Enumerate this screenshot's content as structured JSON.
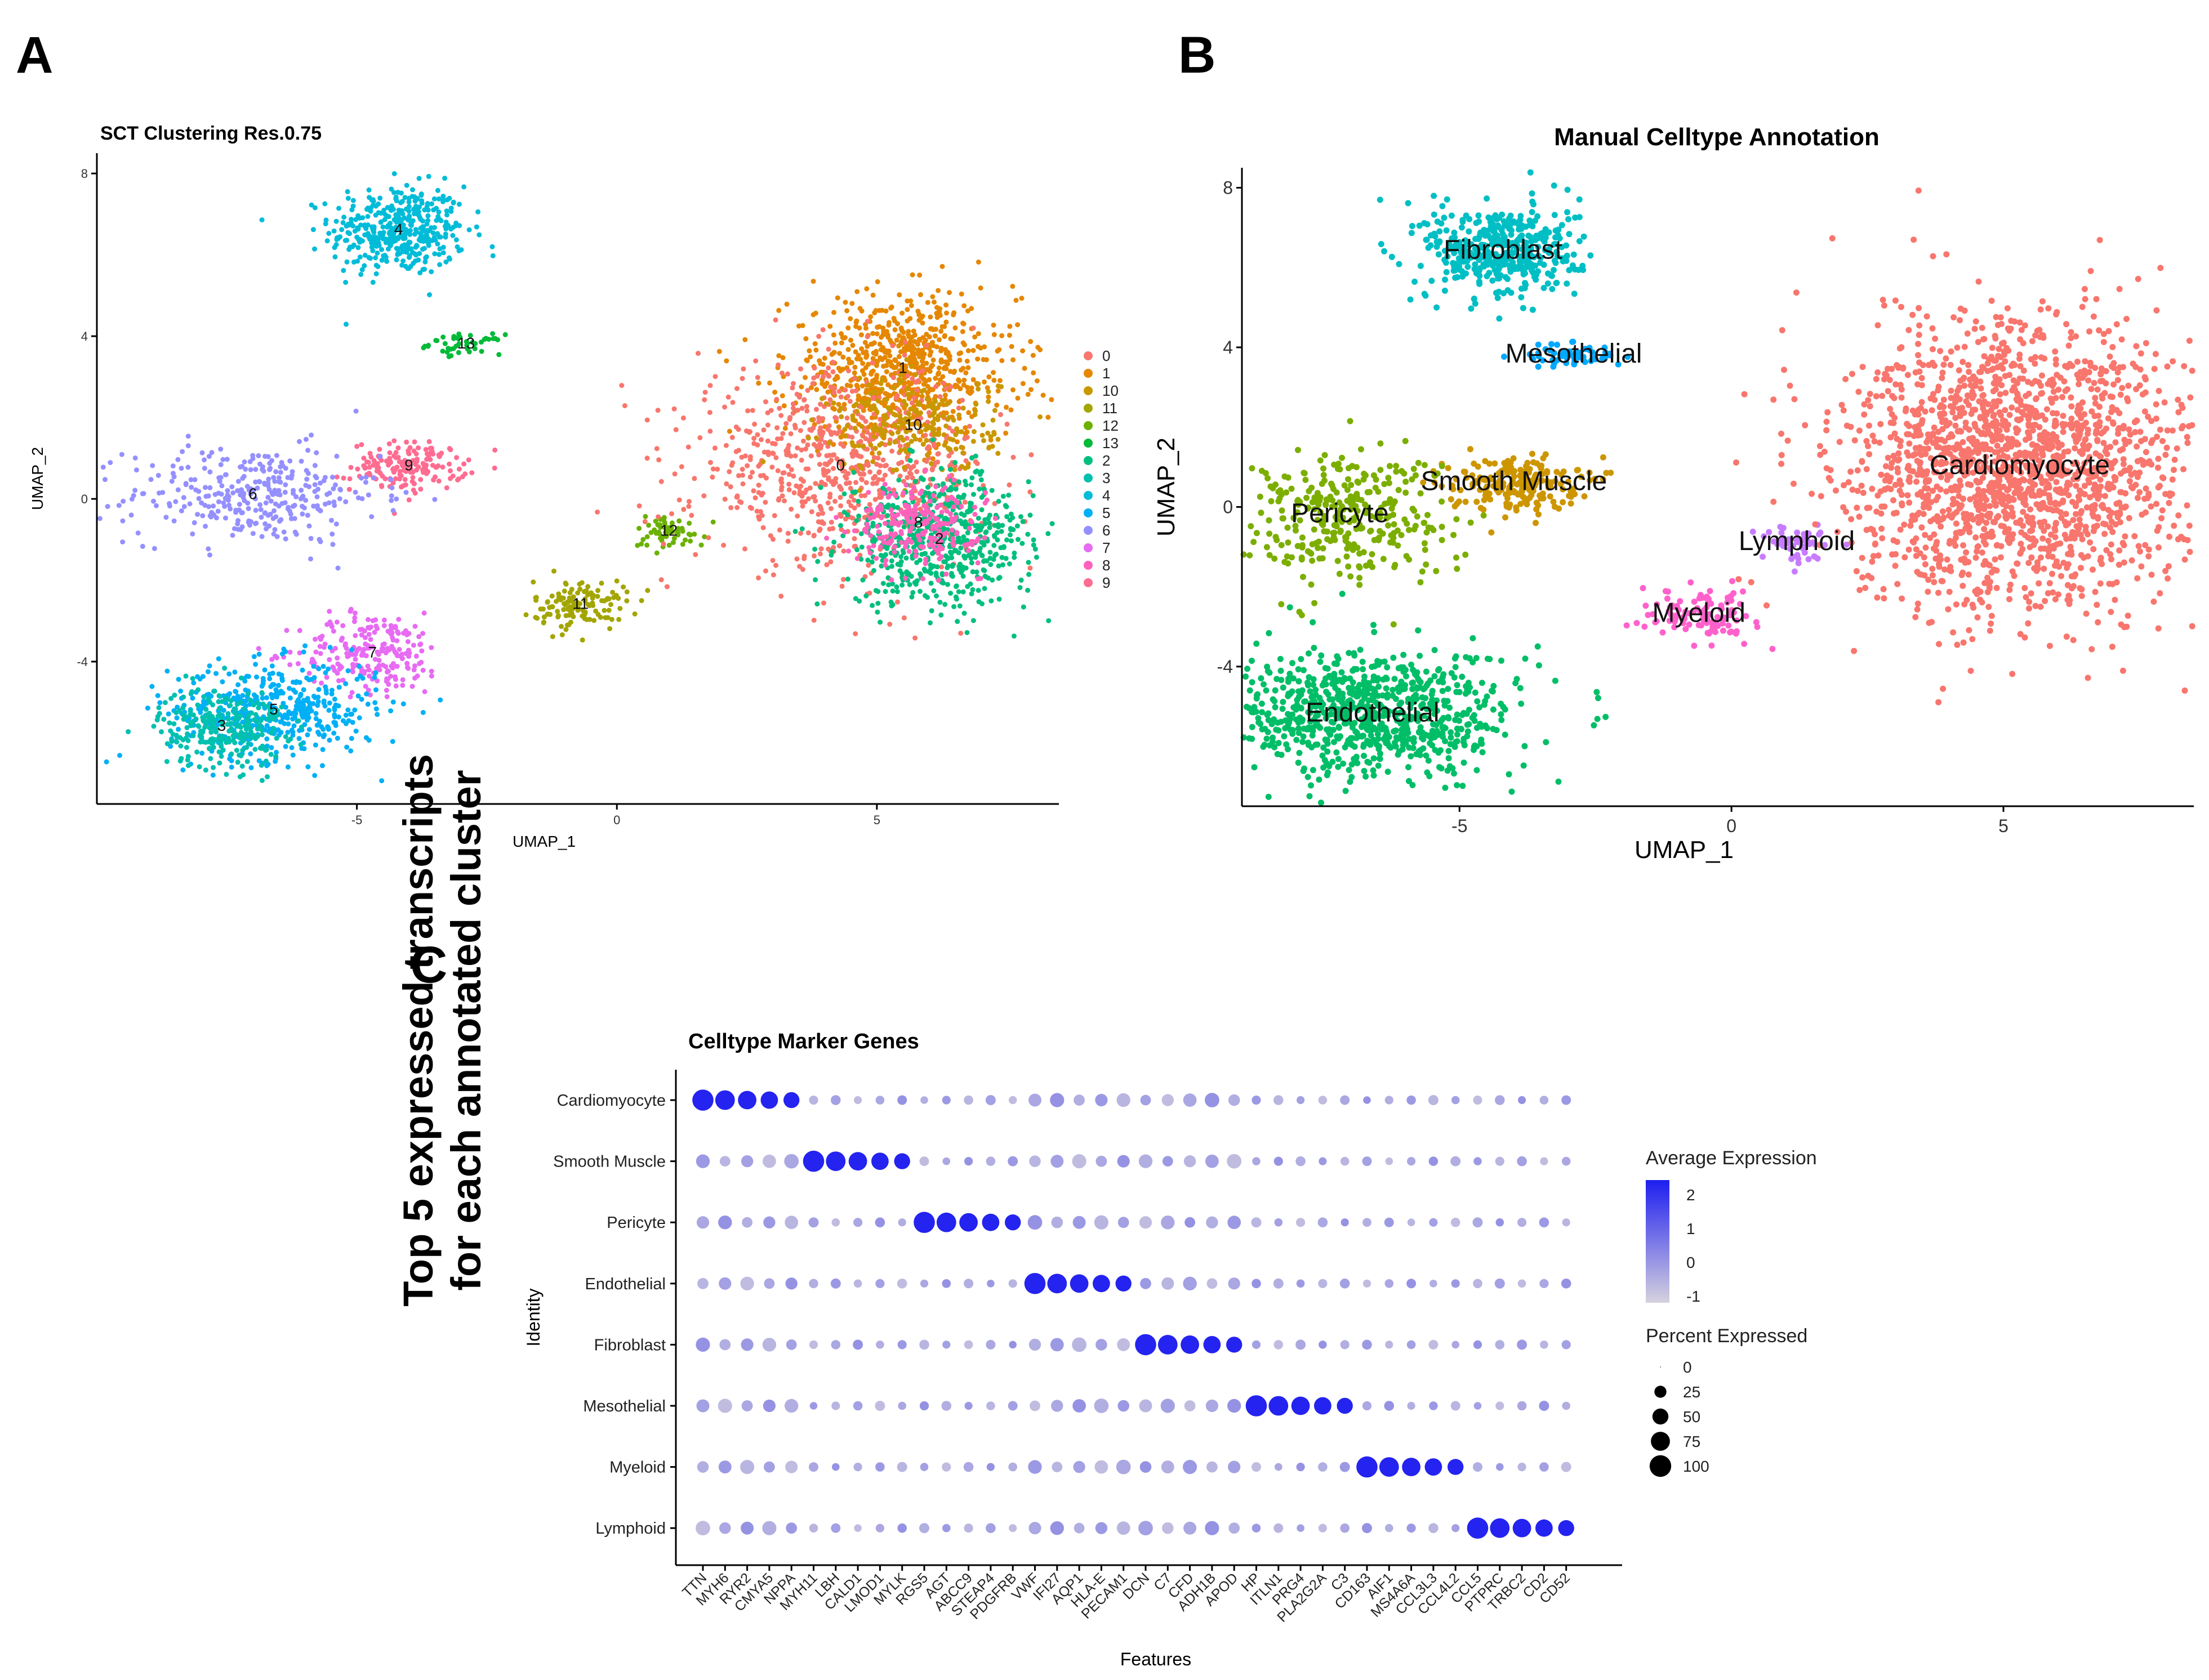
{
  "panel_labels": {
    "a": "A",
    "b": "B",
    "c": "C"
  },
  "side_title": {
    "line1": "Top 5 expressed transcripts",
    "line2": "for each annotated cluster"
  },
  "chart_data": [
    {
      "panel": "A",
      "type": "scatter",
      "title": "SCT Clustering Res.0.75",
      "xlabel": "UMAP_1",
      "ylabel": "UMAP_2",
      "xlim": [
        -10,
        8.5
      ],
      "ylim": [
        -7.5,
        8.5
      ],
      "xticks": [
        -5,
        0,
        5
      ],
      "yticks": [
        -4,
        0,
        4,
        8
      ],
      "legend_position": "right",
      "legend": [
        {
          "label": "0",
          "color": "#F8766D"
        },
        {
          "label": "1",
          "color": "#E58700"
        },
        {
          "label": "10",
          "color": "#C99800"
        },
        {
          "label": "11",
          "color": "#A3A500"
        },
        {
          "label": "12",
          "color": "#6BB100"
        },
        {
          "label": "13",
          "color": "#00BA38"
        },
        {
          "label": "2",
          "color": "#00BF7D"
        },
        {
          "label": "3",
          "color": "#00C0AF"
        },
        {
          "label": "4",
          "color": "#00BCD8"
        },
        {
          "label": "5",
          "color": "#00B0F6"
        },
        {
          "label": "6",
          "color": "#9590FF"
        },
        {
          "label": "7",
          "color": "#E76BF3"
        },
        {
          "label": "8",
          "color": "#FF62BC"
        },
        {
          "label": "9",
          "color": "#FF6C91"
        }
      ],
      "clusters": [
        {
          "label": "4",
          "cx": -4.2,
          "cy": 6.6,
          "sx": 0.65,
          "sy": 0.55,
          "n": 420,
          "color": "#00BCD8"
        },
        {
          "label": "13",
          "cx": -2.9,
          "cy": 3.8,
          "sx": 0.35,
          "sy": 0.12,
          "n": 45,
          "color": "#00BA38"
        },
        {
          "label": "9",
          "cx": -4.0,
          "cy": 0.8,
          "sx": 0.55,
          "sy": 0.3,
          "n": 170,
          "color": "#FF6C91"
        },
        {
          "label": "6",
          "cx": -7.0,
          "cy": 0.1,
          "sx": 1.2,
          "sy": 0.6,
          "n": 330,
          "color": "#9590FF"
        },
        {
          "label": "7",
          "cx": -4.7,
          "cy": -3.8,
          "sx": 0.7,
          "sy": 0.5,
          "n": 220,
          "color": "#E76BF3"
        },
        {
          "label": "5",
          "cx": -6.6,
          "cy": -5.2,
          "sx": 1.0,
          "sy": 0.6,
          "n": 450,
          "color": "#00B0F6"
        },
        {
          "label": "3",
          "cx": -7.6,
          "cy": -5.6,
          "sx": 0.6,
          "sy": 0.5,
          "n": 260,
          "color": "#00C0AF"
        },
        {
          "label": "11",
          "cx": -0.7,
          "cy": -2.6,
          "sx": 0.45,
          "sy": 0.3,
          "n": 130,
          "color": "#A3A500"
        },
        {
          "label": "12",
          "cx": 1.0,
          "cy": -0.8,
          "sx": 0.35,
          "sy": 0.2,
          "n": 60,
          "color": "#6BB100"
        },
        {
          "label": "1",
          "cx": 5.5,
          "cy": 3.2,
          "sx": 1.1,
          "sy": 0.9,
          "n": 700,
          "color": "#E58700"
        },
        {
          "label": "0",
          "cx": 4.3,
          "cy": 0.8,
          "sx": 1.4,
          "sy": 1.2,
          "n": 750,
          "color": "#F8766D"
        },
        {
          "label": "10",
          "cx": 5.7,
          "cy": 1.8,
          "sx": 0.8,
          "sy": 0.6,
          "n": 220,
          "color": "#C99800"
        },
        {
          "label": "2",
          "cx": 6.2,
          "cy": -1.0,
          "sx": 0.9,
          "sy": 0.8,
          "n": 600,
          "color": "#00BF7D"
        },
        {
          "label": "8",
          "cx": 5.8,
          "cy": -0.6,
          "sx": 0.6,
          "sy": 0.5,
          "n": 230,
          "color": "#FF62BC"
        }
      ]
    },
    {
      "panel": "B",
      "type": "scatter",
      "title": "Manual Celltype Annotation",
      "xlabel": "UMAP_1",
      "ylabel": "UMAP_2",
      "xlim": [
        -9,
        8.5
      ],
      "ylim": [
        -7.5,
        8.5
      ],
      "xticks": [
        -5,
        0,
        5
      ],
      "yticks": [
        -4,
        0,
        4,
        8
      ],
      "clusters": [
        {
          "label": "Fibroblast",
          "cx": -4.2,
          "cy": 6.4,
          "sx": 0.7,
          "sy": 0.6,
          "n": 420,
          "color": "#00BFC4"
        },
        {
          "label": "Mesothelial",
          "cx": -2.9,
          "cy": 3.8,
          "sx": 0.45,
          "sy": 0.15,
          "n": 60,
          "color": "#00A9FF"
        },
        {
          "label": "Smooth Muscle",
          "cx": -4.0,
          "cy": 0.6,
          "sx": 0.6,
          "sy": 0.35,
          "n": 200,
          "color": "#CD9600"
        },
        {
          "label": "Pericyte",
          "cx": -7.2,
          "cy": -0.2,
          "sx": 1.0,
          "sy": 0.8,
          "n": 330,
          "color": "#7CAE00"
        },
        {
          "label": "Endothelial",
          "cx": -6.6,
          "cy": -5.2,
          "sx": 1.3,
          "sy": 0.8,
          "n": 800,
          "color": "#00BE67"
        },
        {
          "label": "Lymphoid",
          "cx": 1.2,
          "cy": -0.9,
          "sx": 0.35,
          "sy": 0.25,
          "n": 50,
          "color": "#C77CFF"
        },
        {
          "label": "Myeloid",
          "cx": -0.6,
          "cy": -2.7,
          "sx": 0.5,
          "sy": 0.3,
          "n": 110,
          "color": "#FF61CC"
        },
        {
          "label": "Cardiomyocyte",
          "cx": 5.3,
          "cy": 1.0,
          "sx": 1.6,
          "sy": 1.8,
          "n": 1900,
          "color": "#F8766D"
        }
      ]
    },
    {
      "panel": "C",
      "type": "dot",
      "title": "Celltype Marker Genes",
      "xlabel": "Features",
      "ylabel": "Identity",
      "features": [
        "TTN",
        "MYH6",
        "RYR2",
        "CMYA5",
        "NPPA",
        "MYH11",
        "LBH",
        "CALD1",
        "LMOD1",
        "MYLK",
        "RGS5",
        "AGT",
        "ABCC9",
        "STEAP4",
        "PDGFRB",
        "VWF",
        "IFI27",
        "AQP1",
        "HLA-E",
        "PECAM1",
        "DCN",
        "C7",
        "CFD",
        "ADH1B",
        "APOD",
        "HP",
        "ITLN1",
        "PRG4",
        "PLA2G2A",
        "C3",
        "CD163",
        "AIF1",
        "MS4A6A",
        "CCL3L3",
        "CCL4L2",
        "CCL5",
        "PTPRC",
        "TRBC2",
        "CD2",
        "CD52"
      ],
      "identities": [
        "Cardiomyocyte",
        "Smooth Muscle",
        "Pericyte",
        "Endothelial",
        "Fibroblast",
        "Mesothelial",
        "Myeloid",
        "Lymphoid"
      ],
      "legend_expression": {
        "title": "Average Expression",
        "ticks": [
          "2",
          "1",
          "0",
          "-1"
        ],
        "range": [
          -1,
          2.3
        ]
      },
      "legend_percent": {
        "title": "Percent Expressed",
        "ticks": [
          "0",
          "25",
          "50",
          "75",
          "100"
        ]
      }
    }
  ]
}
